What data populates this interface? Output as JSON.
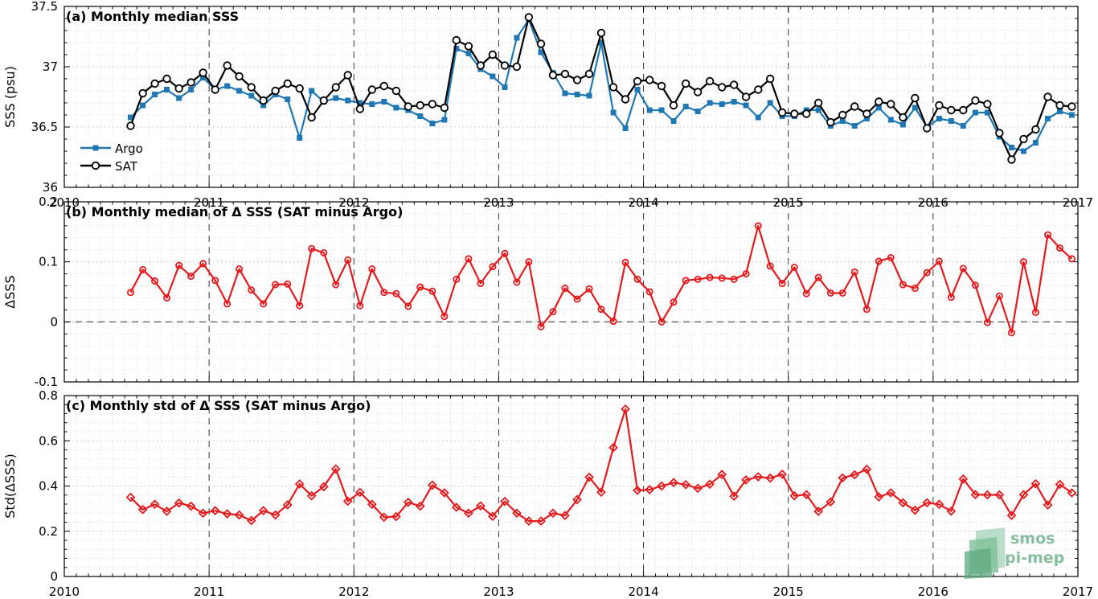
{
  "figure": {
    "logo_line1": "smos",
    "logo_line2": "pi-mep",
    "logo_color": "#86bf9e"
  },
  "chart_data": [
    {
      "type": "line",
      "title": "(a) Monthly median SSS",
      "ylabel": "SSS (psu)",
      "xlabel": "",
      "xlim": [
        2010,
        2017
      ],
      "ylim": [
        36,
        37.5
      ],
      "xticks": [
        "2010",
        "2011",
        "2012",
        "2013",
        "2014",
        "2015",
        "2016",
        "2017"
      ],
      "yticks": [
        "36",
        "36.5",
        "37",
        "37.5"
      ],
      "grid": true,
      "legend_position": "lower-left",
      "x": [
        2010.458,
        2010.542,
        2010.625,
        2010.708,
        2010.792,
        2010.875,
        2010.958,
        2011.042,
        2011.125,
        2011.208,
        2011.292,
        2011.375,
        2011.458,
        2011.542,
        2011.625,
        2011.708,
        2011.792,
        2011.875,
        2011.958,
        2012.042,
        2012.125,
        2012.208,
        2012.292,
        2012.375,
        2012.458,
        2012.542,
        2012.625,
        2012.708,
        2012.792,
        2012.875,
        2012.958,
        2013.042,
        2013.125,
        2013.208,
        2013.292,
        2013.375,
        2013.458,
        2013.542,
        2013.625,
        2013.708,
        2013.792,
        2013.875,
        2013.958,
        2014.042,
        2014.125,
        2014.208,
        2014.292,
        2014.375,
        2014.458,
        2014.542,
        2014.625,
        2014.708,
        2014.792,
        2014.875,
        2014.958,
        2015.042,
        2015.125,
        2015.208,
        2015.292,
        2015.375,
        2015.458,
        2015.542,
        2015.625,
        2015.708,
        2015.792,
        2015.875,
        2015.958,
        2016.042,
        2016.125,
        2016.208,
        2016.292,
        2016.375,
        2016.458,
        2016.542,
        2016.625,
        2016.708,
        2016.792,
        2016.875,
        2016.958
      ],
      "series": [
        {
          "name": "Argo",
          "color": "#1f77b4",
          "marker": "square",
          "values": [
            36.58,
            36.68,
            36.77,
            36.81,
            36.74,
            36.81,
            36.91,
            36.81,
            36.84,
            36.8,
            36.76,
            36.68,
            36.77,
            36.73,
            36.41,
            36.8,
            36.71,
            36.74,
            36.72,
            36.7,
            36.69,
            36.71,
            36.66,
            36.64,
            36.59,
            36.53,
            36.56,
            37.15,
            37.11,
            36.98,
            36.92,
            36.83,
            37.24,
            37.39,
            37.12,
            36.95,
            36.78,
            36.77,
            36.76,
            37.2,
            36.62,
            36.49,
            36.81,
            36.64,
            36.64,
            36.55,
            36.67,
            36.63,
            36.7,
            36.69,
            36.71,
            36.68,
            36.58,
            36.7,
            36.59,
            36.59,
            36.64,
            36.64,
            36.51,
            36.55,
            36.51,
            36.57,
            36.66,
            36.56,
            36.52,
            36.66,
            36.5,
            36.57,
            36.55,
            36.51,
            36.62,
            36.62,
            36.42,
            36.33,
            36.3,
            36.37,
            36.57,
            36.63,
            36.6
          ]
        },
        {
          "name": "SAT",
          "color": "#000000",
          "marker": "circle",
          "values": [
            36.51,
            36.78,
            36.86,
            36.9,
            36.82,
            36.87,
            36.95,
            36.81,
            37.01,
            36.92,
            36.83,
            36.72,
            36.8,
            36.86,
            36.82,
            36.58,
            36.72,
            36.83,
            36.93,
            36.65,
            36.81,
            36.84,
            36.8,
            36.67,
            36.68,
            36.69,
            36.66,
            37.22,
            37.17,
            37.01,
            37.1,
            37.01,
            37.0,
            37.41,
            37.19,
            36.93,
            36.94,
            36.89,
            36.94,
            37.28,
            36.83,
            36.73,
            36.88,
            36.89,
            36.84,
            36.68,
            36.86,
            36.79,
            36.88,
            36.83,
            36.85,
            36.75,
            36.81,
            36.9,
            36.62,
            36.61,
            36.61,
            36.7,
            36.54,
            36.6,
            36.67,
            36.61,
            36.71,
            36.69,
            36.58,
            36.74,
            36.49,
            36.68,
            36.64,
            36.64,
            36.72,
            36.69,
            36.45,
            36.23,
            36.4,
            36.48,
            36.75,
            36.68,
            36.67
          ]
        }
      ]
    },
    {
      "type": "line",
      "title": "(b) Monthly median of Δ SSS (SAT minus Argo)",
      "ylabel": "ΔSSS",
      "xlabel": "",
      "xlim": [
        2010,
        2017
      ],
      "ylim": [
        -0.1,
        0.2
      ],
      "xticks": [],
      "yticks": [
        "-0.1",
        "0",
        "0.1",
        "0.2"
      ],
      "grid": true,
      "reference_line": 0,
      "x": [
        2010.458,
        2010.542,
        2010.625,
        2010.708,
        2010.792,
        2010.875,
        2010.958,
        2011.042,
        2011.125,
        2011.208,
        2011.292,
        2011.375,
        2011.458,
        2011.542,
        2011.625,
        2011.708,
        2011.792,
        2011.875,
        2011.958,
        2012.042,
        2012.125,
        2012.208,
        2012.292,
        2012.375,
        2012.458,
        2012.542,
        2012.625,
        2012.708,
        2012.792,
        2012.875,
        2012.958,
        2013.042,
        2013.125,
        2013.208,
        2013.292,
        2013.375,
        2013.458,
        2013.542,
        2013.625,
        2013.708,
        2013.792,
        2013.875,
        2013.958,
        2014.042,
        2014.125,
        2014.208,
        2014.292,
        2014.375,
        2014.458,
        2014.542,
        2014.625,
        2014.708,
        2014.792,
        2014.875,
        2014.958,
        2015.042,
        2015.125,
        2015.208,
        2015.292,
        2015.375,
        2015.458,
        2015.542,
        2015.625,
        2015.708,
        2015.792,
        2015.875,
        2015.958,
        2016.042,
        2016.125,
        2016.208,
        2016.292,
        2016.375,
        2016.458,
        2016.542,
        2016.625,
        2016.708,
        2016.792,
        2016.875,
        2016.958
      ],
      "series": [
        {
          "color": "#e41a1c",
          "marker": "circle",
          "values": [
            0.049,
            0.087,
            0.068,
            0.04,
            0.094,
            0.076,
            0.097,
            0.069,
            0.03,
            0.088,
            0.053,
            0.03,
            0.062,
            0.063,
            0.027,
            0.122,
            0.115,
            0.062,
            0.103,
            0.027,
            0.088,
            0.049,
            0.047,
            0.026,
            0.058,
            0.051,
            0.009,
            0.071,
            0.105,
            0.064,
            0.092,
            0.114,
            0.066,
            0.1,
            -0.008,
            0.017,
            0.056,
            0.038,
            0.055,
            0.021,
            0.001,
            0.099,
            0.071,
            0.05,
            0.0,
            0.033,
            0.069,
            0.071,
            0.074,
            0.073,
            0.071,
            0.08,
            0.16,
            0.093,
            0.064,
            0.091,
            0.047,
            0.074,
            0.048,
            0.048,
            0.083,
            0.021,
            0.101,
            0.107,
            0.062,
            0.056,
            0.082,
            0.101,
            0.041,
            0.089,
            0.061,
            -0.001,
            0.043,
            -0.018,
            0.1,
            0.016,
            0.145,
            0.123,
            0.105
          ]
        }
      ]
    },
    {
      "type": "line",
      "title": "(c) Monthly std of Δ SSS (SAT minus Argo)",
      "ylabel": "Std(ΔSSS)",
      "xlabel": "",
      "xlim": [
        2010,
        2017
      ],
      "ylim": [
        0,
        0.8
      ],
      "xticks": [
        "2010",
        "2011",
        "2012",
        "2013",
        "2014",
        "2015",
        "2016",
        "2017"
      ],
      "yticks": [
        "0",
        "0.2",
        "0.4",
        "0.6",
        "0.8"
      ],
      "grid": true,
      "x": [
        2010.458,
        2010.542,
        2010.625,
        2010.708,
        2010.792,
        2010.875,
        2010.958,
        2011.042,
        2011.125,
        2011.208,
        2011.292,
        2011.375,
        2011.458,
        2011.542,
        2011.625,
        2011.708,
        2011.792,
        2011.875,
        2011.958,
        2012.042,
        2012.125,
        2012.208,
        2012.292,
        2012.375,
        2012.458,
        2012.542,
        2012.625,
        2012.708,
        2012.792,
        2012.875,
        2012.958,
        2013.042,
        2013.125,
        2013.208,
        2013.292,
        2013.375,
        2013.458,
        2013.542,
        2013.625,
        2013.708,
        2013.792,
        2013.875,
        2013.958,
        2014.042,
        2014.125,
        2014.208,
        2014.292,
        2014.375,
        2014.458,
        2014.542,
        2014.625,
        2014.708,
        2014.792,
        2014.875,
        2014.958,
        2015.042,
        2015.125,
        2015.208,
        2015.292,
        2015.375,
        2015.458,
        2015.542,
        2015.625,
        2015.708,
        2015.792,
        2015.875,
        2015.958,
        2016.042,
        2016.125,
        2016.208,
        2016.292,
        2016.375,
        2016.458,
        2016.542,
        2016.625,
        2016.708,
        2016.792,
        2016.875,
        2016.958
      ],
      "series": [
        {
          "color": "#e41a1c",
          "marker": "diamond",
          "values": [
            0.35,
            0.296,
            0.319,
            0.288,
            0.325,
            0.311,
            0.28,
            0.291,
            0.277,
            0.272,
            0.247,
            0.291,
            0.272,
            0.317,
            0.409,
            0.357,
            0.397,
            0.475,
            0.333,
            0.372,
            0.319,
            0.262,
            0.265,
            0.328,
            0.311,
            0.404,
            0.37,
            0.306,
            0.28,
            0.312,
            0.266,
            0.332,
            0.28,
            0.245,
            0.245,
            0.28,
            0.27,
            0.34,
            0.439,
            0.373,
            0.57,
            0.74,
            0.381,
            0.384,
            0.4,
            0.415,
            0.406,
            0.39,
            0.408,
            0.451,
            0.355,
            0.427,
            0.441,
            0.435,
            0.452,
            0.357,
            0.362,
            0.288,
            0.33,
            0.436,
            0.45,
            0.474,
            0.352,
            0.37,
            0.326,
            0.293,
            0.326,
            0.319,
            0.289,
            0.431,
            0.362,
            0.361,
            0.361,
            0.27,
            0.362,
            0.41,
            0.316,
            0.407,
            0.37
          ]
        }
      ]
    }
  ]
}
